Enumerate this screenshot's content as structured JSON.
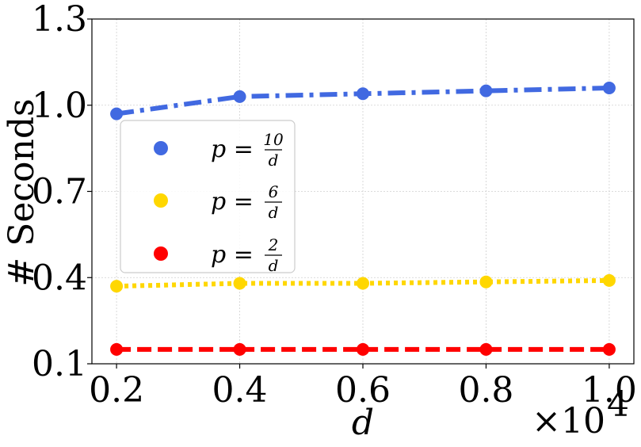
{
  "chart_data": {
    "type": "line",
    "xlabel": "d",
    "ylabel": "# Seconds",
    "x_multiplier_label": "×10",
    "x_multiplier_exp": "4",
    "x": [
      0.2,
      0.4,
      0.6,
      0.8,
      1.0
    ],
    "x_ticks": [
      "0.2",
      "0.4",
      "0.6",
      "0.8",
      "1.0"
    ],
    "y_ticks": [
      "0.1",
      "0.4",
      "0.7",
      "1.0",
      "1.3"
    ],
    "y_tick_values": [
      0.1,
      0.4,
      0.7,
      1.0,
      1.3
    ],
    "xlim": [
      0.16,
      1.04
    ],
    "ylim": [
      0.1,
      1.3
    ],
    "grid": true,
    "legend_position": "center-left",
    "series": [
      {
        "name": "p = 10/d",
        "legend_prefix": "p =",
        "legend_num": "10",
        "legend_den": "d",
        "color": "#4169E1",
        "linestyle": "dashdot",
        "values": [
          0.97,
          1.03,
          1.04,
          1.05,
          1.06
        ]
      },
      {
        "name": "p = 6/d",
        "legend_prefix": "p =",
        "legend_num": "6",
        "legend_den": "d",
        "color": "#FFD700",
        "linestyle": "dotted",
        "values": [
          0.37,
          0.38,
          0.38,
          0.385,
          0.39
        ]
      },
      {
        "name": "p = 2/d",
        "legend_prefix": "p =",
        "legend_num": "2",
        "legend_den": "d",
        "color": "#FF0000",
        "linestyle": "dashed",
        "values": [
          0.15,
          0.15,
          0.15,
          0.15,
          0.15
        ]
      }
    ]
  }
}
